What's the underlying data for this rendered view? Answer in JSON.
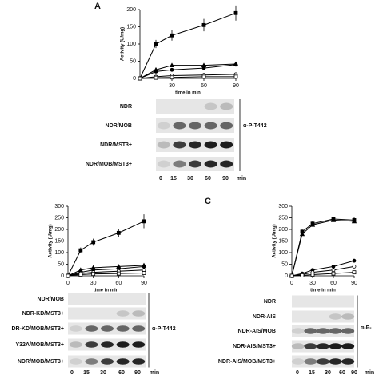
{
  "panel_labels": [
    "A",
    "C"
  ],
  "chart_data": [
    {
      "type": "line",
      "y_label": "Activity (U/mg)",
      "x_label": "time in min",
      "x": [
        0,
        15,
        30,
        60,
        90
      ],
      "xlim": [
        0,
        90
      ],
      "xticks": [
        30,
        60,
        90
      ],
      "ylim": [
        0,
        200
      ],
      "yticks": [
        0,
        50,
        100,
        150,
        200
      ],
      "series": [
        {
          "color": "#000000",
          "values": [
            0,
            100,
            125,
            155,
            190
          ],
          "errors": [
            0,
            12,
            15,
            18,
            22
          ]
        },
        {
          "color": "#000000",
          "values": [
            0,
            25,
            38,
            38,
            42
          ]
        },
        {
          "color": "#000000",
          "values": [
            0,
            20,
            25,
            30,
            40
          ]
        },
        {
          "color": "#000000",
          "values": [
            0,
            5,
            8,
            10,
            12
          ]
        },
        {
          "color": "#000000",
          "values": [
            0,
            2,
            3,
            5,
            5
          ]
        }
      ]
    },
    {
      "type": "line",
      "y_label": "Activity (U/mg)",
      "x_label": "time in min",
      "x": [
        0,
        15,
        30,
        60,
        90
      ],
      "xlim": [
        0,
        90
      ],
      "xticks": [
        0,
        30,
        60,
        90
      ],
      "ylim": [
        0,
        300
      ],
      "yticks": [
        0,
        50,
        100,
        150,
        200,
        250,
        300
      ],
      "series": [
        {
          "color": "#000000",
          "values": [
            0,
            110,
            145,
            185,
            235
          ],
          "errors": [
            0,
            12,
            15,
            18,
            30
          ]
        },
        {
          "color": "#000000",
          "values": [
            0,
            25,
            35,
            40,
            45
          ]
        },
        {
          "color": "#000000",
          "values": [
            0,
            15,
            25,
            30,
            40
          ]
        },
        {
          "color": "#000000",
          "values": [
            0,
            10,
            15,
            20,
            25
          ]
        },
        {
          "color": "#000000",
          "values": [
            0,
            5,
            8,
            10,
            12
          ]
        }
      ]
    },
    {
      "type": "line",
      "y_label": "Activity (U/mg)",
      "x_label": "time in min",
      "x": [
        0,
        15,
        30,
        60,
        90
      ],
      "xlim": [
        0,
        90
      ],
      "xticks": [
        0,
        30,
        60,
        90
      ],
      "ylim": [
        0,
        300
      ],
      "yticks": [
        0,
        50,
        100,
        150,
        200,
        250,
        300
      ],
      "series": [
        {
          "color": "#000000",
          "values": [
            0,
            190,
            225,
            245,
            240
          ],
          "errors": [
            0,
            10,
            12,
            10,
            12
          ]
        },
        {
          "color": "#000000",
          "values": [
            0,
            180,
            220,
            240,
            235
          ]
        },
        {
          "color": "#000000",
          "values": [
            0,
            10,
            25,
            40,
            65
          ],
          "errors": [
            0,
            3,
            5,
            6,
            8
          ]
        },
        {
          "color": "#000000",
          "values": [
            0,
            5,
            15,
            25,
            40
          ]
        },
        {
          "color": "#000000",
          "values": [
            0,
            2,
            5,
            10,
            15
          ]
        }
      ]
    }
  ],
  "blots": [
    {
      "rows": [
        "NDR",
        "NDR/MOB",
        "NDR/MST3+",
        "NDR/MOB/MST3+"
      ],
      "antibody": "α-P-T442",
      "lanes": [
        "0",
        "15",
        "30",
        "60",
        "90",
        "min"
      ]
    },
    {
      "rows": [
        "NDR/MOB",
        "NDR-KD/MST3+",
        "DR-KD/MOB/MST3+",
        "Y32A/MOB/MST3+",
        "NDR/MOB/MST3+"
      ],
      "antibody": "α-P-T442",
      "lanes": [
        "0",
        "15",
        "30",
        "60",
        "90",
        "min"
      ]
    },
    {
      "rows": [
        "NDR",
        "NDR-AIS",
        "NDR-AIS/MOB",
        "NDR-AIS/MST3+",
        "NDR-AIS/MOB/MST3+"
      ],
      "antibody": "α-P-",
      "lanes": [
        "0",
        "15",
        "30",
        "60",
        "90",
        "min"
      ]
    }
  ]
}
